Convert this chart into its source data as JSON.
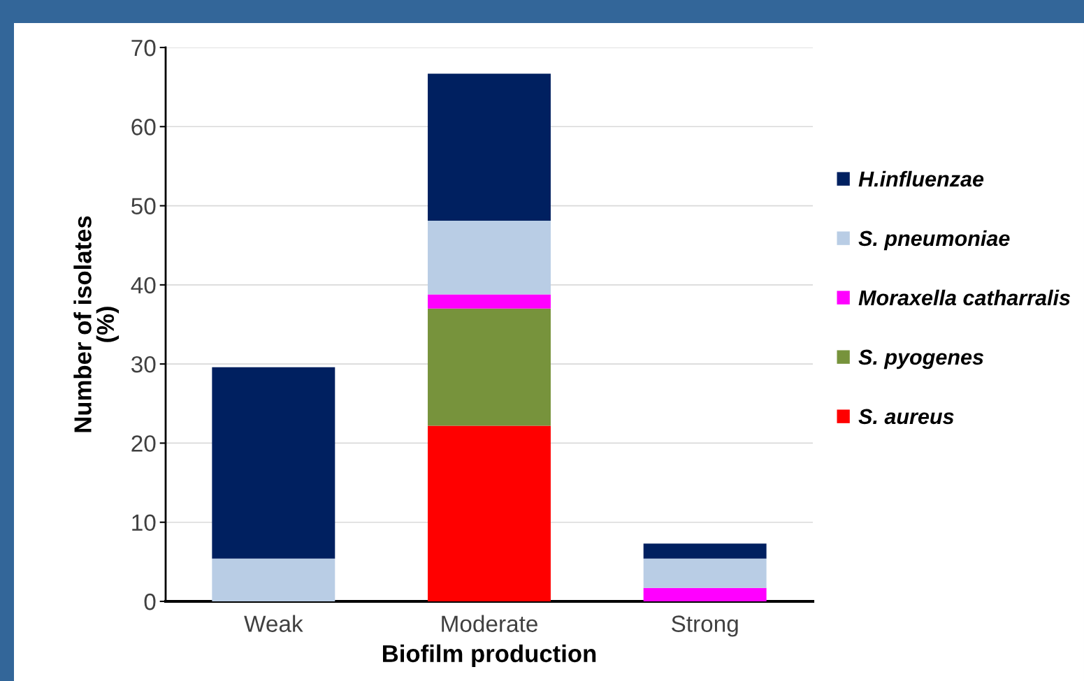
{
  "chart_data": {
    "type": "bar",
    "stacked": true,
    "xlabel": "Biofilm production",
    "ylabel": "Number of isolates\n(%)",
    "categories": [
      "Weak",
      "Moderate",
      "Strong"
    ],
    "series": [
      {
        "name": "S. aureus",
        "color": "#ff0000",
        "values": [
          0,
          22.2,
          0
        ]
      },
      {
        "name": "S. pyogenes",
        "color": "#77933c",
        "values": [
          0,
          14.8,
          0
        ]
      },
      {
        "name": "Moraxella catharralis",
        "color": "#ff00ff",
        "values": [
          0,
          1.8,
          1.7
        ]
      },
      {
        "name": "S. pneumoniae",
        "color": "#b9cde5",
        "values": [
          5.4,
          9.3,
          3.7
        ]
      },
      {
        "name": "H.influenzae",
        "color": "#002060",
        "values": [
          24.2,
          18.6,
          1.9
        ]
      }
    ],
    "ylim": [
      0,
      70
    ],
    "yticks": [
      0,
      10,
      20,
      30,
      40,
      50,
      60,
      70
    ],
    "grid": "y",
    "legend": "right"
  }
}
